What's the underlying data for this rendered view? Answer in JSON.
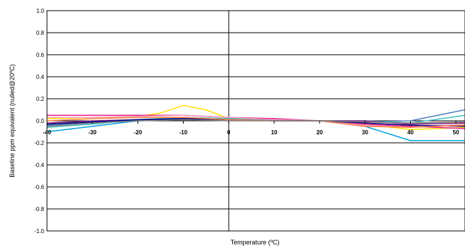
{
  "chart_data": {
    "type": "line",
    "title": "",
    "xlabel": "Temperature (ºC)",
    "ylabel": "Baseline ppm equivalent (nulled@20ºC)",
    "xlim": [
      -40,
      52
    ],
    "ylim": [
      -1.0,
      1.0
    ],
    "y_ticks": [
      "1.0",
      "0.8",
      "0.6",
      "0.4",
      "0.2",
      "0.0",
      "-0.2",
      "-0.4",
      "-0.6",
      "-0.8",
      "-1.0"
    ],
    "x_ticks": [
      "-40",
      "-30",
      "-20",
      "-10",
      "0",
      "10",
      "20",
      "30",
      "40",
      "50"
    ],
    "grid": true,
    "legend": "none",
    "series": [
      {
        "color": "#FFE000",
        "x": [
          -40,
          -20,
          -15,
          -10,
          -5,
          0,
          10,
          20,
          30,
          40,
          52
        ],
        "y": [
          0.02,
          0.04,
          0.07,
          0.14,
          0.1,
          0.02,
          0.01,
          0.0,
          -0.03,
          -0.08,
          -0.06
        ]
      },
      {
        "color": "#E8208C",
        "x": [
          -40,
          -20,
          -10,
          0,
          10,
          20,
          30,
          40,
          52
        ],
        "y": [
          0.05,
          0.05,
          0.05,
          0.03,
          0.02,
          0.0,
          -0.03,
          -0.05,
          -0.07
        ]
      },
      {
        "color": "#00A0E0",
        "x": [
          -40,
          -30,
          -20,
          -10,
          0,
          10,
          20,
          30,
          40,
          52
        ],
        "y": [
          -0.1,
          -0.05,
          0.0,
          0.01,
          0.01,
          0.0,
          0.0,
          -0.05,
          -0.18,
          -0.18
        ]
      },
      {
        "color": "#5080C0",
        "x": [
          -40,
          -30,
          -20,
          -10,
          0,
          10,
          20,
          30,
          40,
          52
        ],
        "y": [
          -0.04,
          -0.02,
          0.0,
          0.02,
          0.02,
          0.01,
          0.0,
          -0.01,
          0.0,
          0.1
        ]
      },
      {
        "color": "#40C0C0",
        "x": [
          -40,
          -30,
          -20,
          -10,
          0,
          10,
          20,
          30,
          40,
          52
        ],
        "y": [
          -0.06,
          -0.03,
          0.01,
          0.03,
          0.02,
          0.01,
          0.0,
          0.0,
          -0.02,
          0.05
        ]
      },
      {
        "color": "#F0A0C0",
        "x": [
          -40,
          -30,
          -20,
          -10,
          0,
          10,
          20,
          30,
          40,
          52
        ],
        "y": [
          0.03,
          0.03,
          0.04,
          0.05,
          0.03,
          0.01,
          0.0,
          -0.04,
          -0.06,
          -0.03
        ]
      },
      {
        "color": "#802080",
        "x": [
          -40,
          -30,
          -20,
          -10,
          0,
          10,
          20,
          30,
          40,
          52
        ],
        "y": [
          -0.02,
          0.0,
          0.01,
          0.02,
          0.01,
          0.0,
          0.0,
          0.0,
          -0.03,
          -0.02
        ]
      },
      {
        "color": "#000080",
        "x": [
          -40,
          -30,
          -20,
          -10,
          0,
          10,
          20,
          30,
          40,
          52
        ],
        "y": [
          -0.03,
          -0.01,
          0.01,
          0.02,
          0.01,
          0.0,
          0.0,
          -0.02,
          -0.04,
          -0.05
        ]
      },
      {
        "color": "#FF8040",
        "x": [
          -40,
          -30,
          -20,
          -10,
          0,
          10,
          20,
          30,
          40,
          52
        ],
        "y": [
          0.0,
          0.02,
          0.03,
          0.03,
          0.01,
          0.0,
          0.0,
          -0.05,
          -0.06,
          -0.04
        ]
      },
      {
        "color": "#808080",
        "x": [
          -40,
          -30,
          -20,
          -10,
          0,
          10,
          20,
          30,
          40,
          52
        ],
        "y": [
          -0.05,
          -0.02,
          0.0,
          0.01,
          0.0,
          0.0,
          0.0,
          -0.01,
          -0.02,
          -0.01
        ]
      }
    ]
  }
}
